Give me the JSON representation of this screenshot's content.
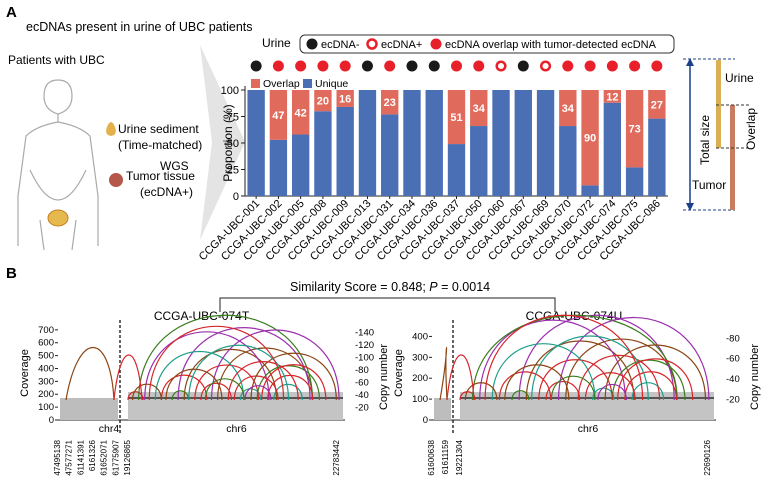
{
  "panel_a": {
    "label": "A",
    "heading": "ecDNAs present in urine of UBC patients",
    "patients": "Patients with UBC",
    "urine_sediment": "Urine sediment",
    "time_matched": "(Time-matched)",
    "wgs": "WGS",
    "tumor_tissue": "Tumor tissue",
    "ecdna_pos": "(ecDNA+)",
    "urine_legend": {
      "title": "Urine",
      "items": [
        "ecDNA-",
        "ecDNA+",
        "ecDNA overlap with tumor-detected ecDNA"
      ]
    },
    "schematic": {
      "urine": "Urine",
      "total_size": "Total size",
      "overlap": "Overlap",
      "tumor": "Tumor"
    }
  },
  "chart_data": {
    "type": "bar",
    "stacked": true,
    "ylabel": "Proportion (%)",
    "categories": [
      "CCGA-UBC-001",
      "CCGA-UBC-002",
      "CCGA-UBC-005",
      "CCGA-UBC-008",
      "CCGA-UBC-009",
      "CCGA-UBC-013",
      "CCGA-UBC-031",
      "CCGA-UBC-034",
      "CCGA-UBC-036",
      "CCGA-UBC-037",
      "CCGA-UBC-050",
      "CCGA-UBC-060",
      "CCGA-UBC-067",
      "CCGA-UBC-069",
      "CCGA-UBC-070",
      "CCGA-UBC-072",
      "CCGA-UBC-074",
      "CCGA-UBC-075",
      "CCGA-UBC-086"
    ],
    "urine_status": [
      0,
      2,
      2,
      2,
      2,
      0,
      2,
      0,
      0,
      2,
      2,
      1,
      0,
      1,
      2,
      2,
      2,
      2,
      2
    ],
    "urine_colors": [
      "#1a1a1a",
      "#e8202a",
      "#e8202a"
    ],
    "series": [
      {
        "name": "Unique",
        "color": "#4a6fb5",
        "values": [
          100,
          53,
          58,
          80,
          84,
          100,
          77,
          100,
          100,
          49,
          66,
          100,
          100,
          100,
          66,
          10,
          88,
          27,
          73
        ]
      },
      {
        "name": "Overlap",
        "color": "#e06a5c",
        "values": [
          0,
          47,
          42,
          20,
          16,
          0,
          23,
          0,
          0,
          51,
          34,
          0,
          0,
          0,
          34,
          90,
          12,
          73,
          27
        ]
      }
    ],
    "ylim": [
      0,
      100
    ],
    "yticks": [
      0,
      25,
      50,
      75,
      100
    ]
  },
  "panel_b": {
    "label": "B",
    "similarity": "Similarity Score = 0.848; ",
    "p": "P",
    "p_value": " = 0.0014",
    "left": {
      "title": "CCGA-UBC-074T",
      "coverage": "Coverage",
      "copy": "Copy number",
      "ylim": [
        0,
        730
      ],
      "yticks": [
        0,
        100,
        200,
        300,
        400,
        500,
        600,
        700
      ],
      "y2lim": [
        0,
        150
      ],
      "y2ticks": [
        {
          "value": 20,
          "label": "-20"
        },
        {
          "value": 40,
          "label": "-40"
        },
        {
          "value": 60,
          "label": "-60"
        },
        {
          "value": 80,
          "label": "-80"
        },
        {
          "value": 100,
          "label": "-100"
        },
        {
          "value": 120,
          "label": "-120"
        },
        {
          "value": 140,
          "label": "-140"
        }
      ],
      "chrs": [
        "chr4",
        "chr6"
      ],
      "coords": [
        "47495138",
        "47577271",
        "61141391",
        "6161326",
        "61652071",
        "61775907",
        "19126865",
        "22783442"
      ]
    },
    "right": {
      "title": "CCGA-UBC-074U",
      "coverage": "Coverage",
      "copy": "Copy number",
      "ylim": [
        0,
        450
      ],
      "yticks": [
        0,
        100,
        200,
        300,
        400
      ],
      "y2lim": [
        0,
        92
      ],
      "y2ticks": [
        {
          "value": 20,
          "label": "-20"
        },
        {
          "value": 40,
          "label": "-40"
        },
        {
          "value": 60,
          "label": "-60"
        },
        {
          "value": 80,
          "label": "-80"
        }
      ],
      "chrs": [
        "chr6"
      ],
      "coords": [
        "61600638",
        "61611159",
        "19221304",
        "22690126"
      ]
    }
  }
}
